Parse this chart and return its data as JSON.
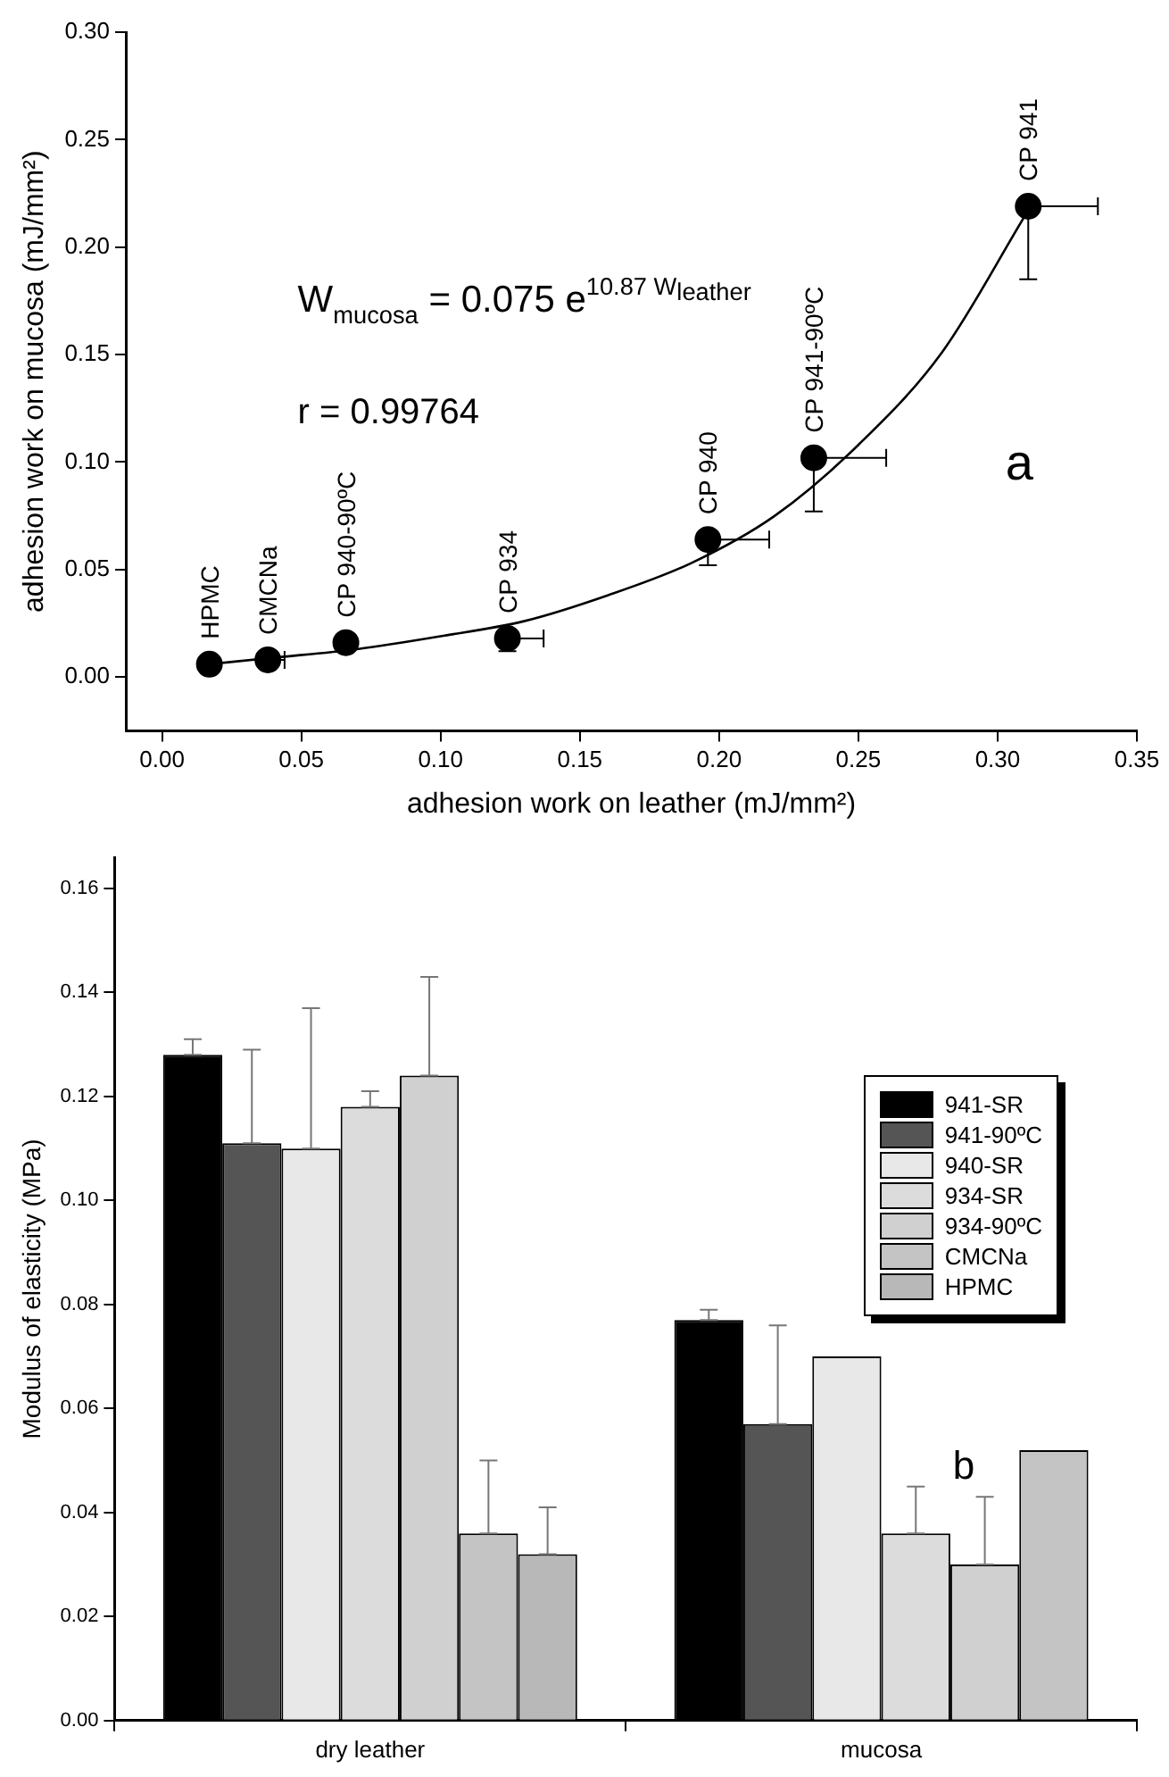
{
  "chart_data": [
    {
      "type": "scatter",
      "xlabel": "adhesion work on leather (mJ/mm²)",
      "ylabel": "adhesion work on mucosa (mJ/mm²)",
      "xlim": [
        -0.013,
        0.35
      ],
      "ylim": [
        -0.025,
        0.3
      ],
      "xticks": [
        {
          "value": 0,
          "label": "0.00"
        },
        0.05,
        {
          "value": 0.1,
          "label": "0.10"
        },
        0.15,
        {
          "value": 0.2,
          "label": "0.20"
        },
        0.25,
        {
          "value": 0.3,
          "label": "0.30"
        },
        0.35
      ],
      "yticks": [
        {
          "value": 0,
          "label": "0.00"
        },
        0.05,
        {
          "value": 0.1,
          "label": "0.10"
        },
        0.15,
        {
          "value": 0.2,
          "label": "0.20"
        },
        0.25,
        {
          "value": 0.3,
          "label": "0.30"
        }
      ],
      "grid": false,
      "legend": false,
      "marker": "circle",
      "annotations": [
        "W$_{mucosa}$ = 0.075 e$^{10.87 W}$$_{leather}$",
        "r = 0.99764",
        "a",
        {
          "text": "HPMC",
          "x": 0.017,
          "y": 0.006
        },
        {
          "text": "CMCNa",
          "x": 0.038,
          "y": 0.008
        },
        {
          "text": "CP 940-90ºC",
          "x": 0.066,
          "y": 0.016
        },
        {
          "text": "CP 934",
          "x": 0.124,
          "y": 0.018
        },
        {
          "text": "CP 940",
          "x": 0.196,
          "y": 0.064
        },
        {
          "text": "CP 941-90ºC",
          "x": 0.234,
          "y": 0.102
        },
        {
          "text": "CP 941",
          "x": 0.311,
          "y": 0.219
        }
      ],
      "series": [
        {
          "type": "scatter",
          "color": "#000000",
          "x": [
            0.017,
            0.038,
            0.066,
            0.124,
            0.196,
            0.234,
            0.311
          ],
          "values": [
            0.006,
            0.008,
            0.016,
            0.018,
            0.064,
            0.102,
            0.219
          ],
          "errors": [
            null,
            null,
            null,
            [
              0.012,
              0.018
            ],
            [
              0.052,
              0.064
            ],
            [
              0.077,
              0.102
            ],
            [
              0.185,
              0.219
            ]
          ],
          "xerrors": [
            null,
            [
              0.038,
              0.044
            ],
            null,
            [
              0.124,
              0.137
            ],
            [
              0.196,
              0.218
            ],
            [
              0.234,
              0.26
            ],
            [
              0.311,
              0.336
            ]
          ]
        },
        {
          "type": "line",
          "color": "#000000",
          "marker": "none",
          "x": [
            0.017,
            0.04,
            0.07,
            0.1,
            0.13,
            0.16,
            0.19,
            0.22,
            0.25,
            0.28,
            0.31
          ],
          "values": [
            0.006,
            0.009,
            0.013,
            0.019,
            0.026,
            0.038,
            0.053,
            0.075,
            0.108,
            0.151,
            0.215
          ]
        }
      ]
    },
    {
      "type": "bar",
      "ylabel": "Modulus of elasticity (MPa)",
      "categories": [
        "dry leather",
        "mucosa"
      ],
      "ylim": [
        0,
        0.166
      ],
      "yticks": [
        {
          "value": 0,
          "label": "0.00"
        },
        0.02,
        0.04,
        0.06,
        0.08,
        {
          "value": 0.1,
          "label": "0.10"
        },
        0.12,
        0.14,
        0.16
      ],
      "grid": false,
      "legend": "top right",
      "annotations": [
        "b"
      ],
      "series": [
        {
          "name": "941-SR",
          "color": "#000000",
          "values": [
            0.128,
            0.077
          ],
          "errors": [
            [
              0.128,
              0.131
            ],
            [
              0.077,
              0.079
            ]
          ]
        },
        {
          "name": "941-90ºC",
          "color": "#555555",
          "values": [
            0.111,
            0.057
          ],
          "errors": [
            [
              0.111,
              0.129
            ],
            [
              0.057,
              0.076
            ]
          ]
        },
        {
          "name": "940-SR",
          "color": "#e8e8e8",
          "values": [
            0.11,
            0.07
          ],
          "errors": [
            [
              0.11,
              0.137
            ],
            null
          ]
        },
        {
          "name": "934-SR",
          "color": "#dcdcdc",
          "values": [
            0.118,
            0.036
          ],
          "errors": [
            [
              0.118,
              0.121
            ],
            [
              0.036,
              0.045
            ]
          ]
        },
        {
          "name": "934-90ºC",
          "color": "#d0d0d0",
          "values": [
            0.124,
            0.03
          ],
          "errors": [
            [
              0.124,
              0.143
            ],
            [
              0.03,
              0.043
            ]
          ]
        },
        {
          "name": "CMCNa",
          "color": "#c4c4c4",
          "values": [
            0.036,
            0.052
          ],
          "errors": [
            [
              0.036,
              0.05
            ],
            null
          ]
        },
        {
          "name": "HPMC",
          "color": "#b8b8b8",
          "values": [
            0.032,
            null
          ],
          "errors": [
            [
              0.032,
              0.041
            ],
            null
          ]
        }
      ]
    }
  ]
}
